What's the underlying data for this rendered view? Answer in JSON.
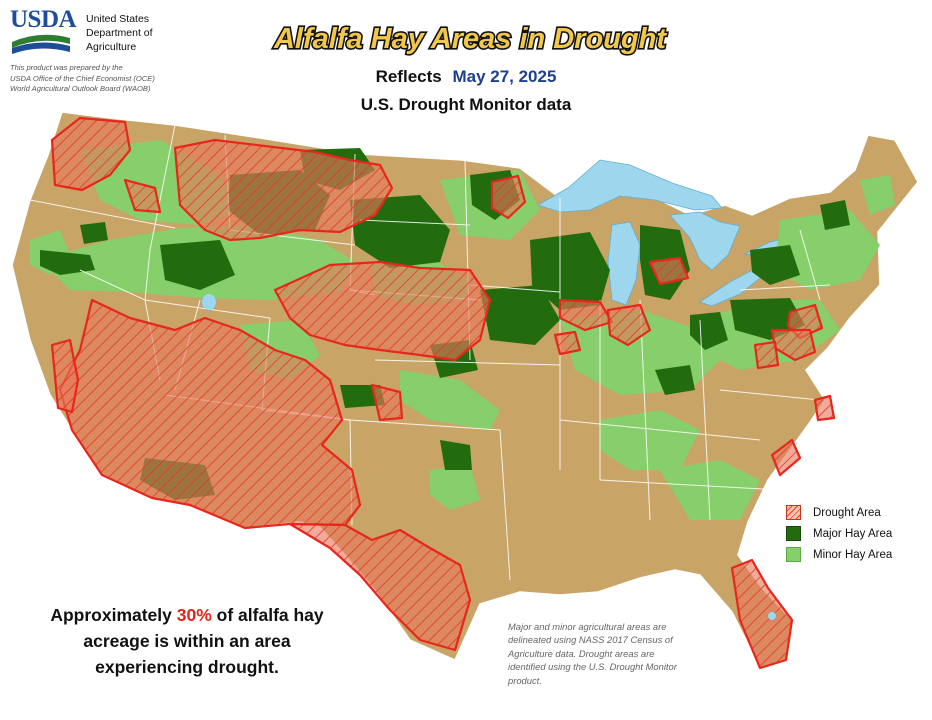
{
  "branding": {
    "agency_abbrev": "USDA",
    "department_lines": [
      "United States",
      "Department of",
      "Agriculture"
    ],
    "credit_lines": [
      "This product was prepared by the",
      "USDA Office of the Chief Economist (OCE)",
      "World Agricultural Outlook Board (WAOB)"
    ],
    "brand_colors": {
      "blue": "#1f4e99",
      "green": "#2e7d32"
    }
  },
  "header": {
    "title": "Alfalfa Hay Areas in Drought",
    "reflects_label": "Reflects",
    "date": "May 27, 2025",
    "source_label": "U.S. Drought Monitor data"
  },
  "map": {
    "region": "Contiguous United States",
    "colors": {
      "base": "#c9a467",
      "major": "#236b0f",
      "minor": "#86cf6a",
      "drought_outline": "#e8271c",
      "water": "#9ed6ee",
      "borders": "#ffffff"
    }
  },
  "legend": {
    "items": [
      {
        "label": "Drought Area",
        "color": "#e8432a"
      },
      {
        "label": "Major Hay Area",
        "color": "#236b0f"
      },
      {
        "label": "Minor Hay Area",
        "color": "#86cf6a"
      }
    ]
  },
  "summary": {
    "prefix": "Approximately",
    "percent": "30%",
    "suffix_line1": "of alfalfa hay",
    "line2": "acreage is within an area",
    "line3": "experiencing drought."
  },
  "footnote": {
    "lines": [
      "Major and minor agricultural areas are",
      "delineated using NASS 2017 Census of",
      "Agriculture data.  Drought areas are",
      "identified using the U.S. Drought Monitor",
      "product."
    ]
  }
}
